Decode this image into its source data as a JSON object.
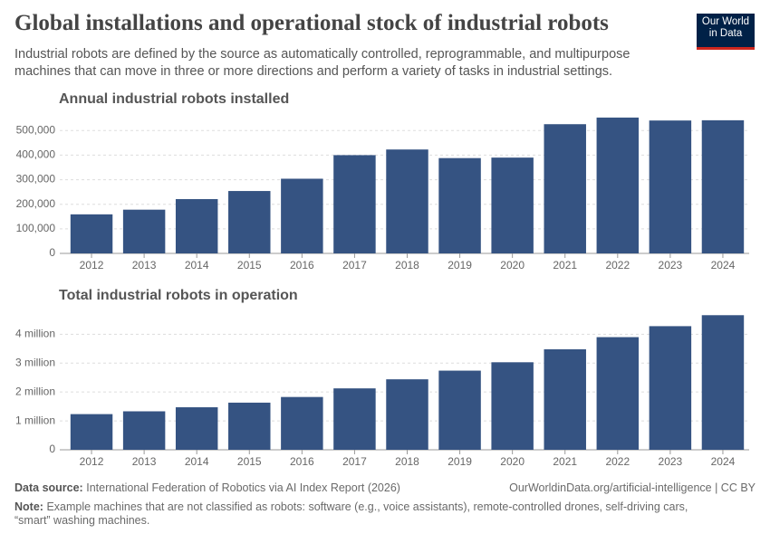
{
  "header": {
    "title": "Global installations and operational stock of industrial robots",
    "subtitle": "Industrial robots are defined by the source as automatically controlled, reprogrammable, and multipurpose machines that can move in three or more directions and perform a variety of tasks in industrial settings.",
    "logo": [
      "Our World",
      "in Data"
    ]
  },
  "chart_data": [
    {
      "type": "bar",
      "title": "Annual industrial robots installed",
      "categories": [
        "2012",
        "2013",
        "2014",
        "2015",
        "2016",
        "2017",
        "2018",
        "2019",
        "2020",
        "2021",
        "2022",
        "2023",
        "2024"
      ],
      "values": [
        159000,
        178000,
        221000,
        254000,
        304000,
        400000,
        423000,
        388000,
        390000,
        526000,
        553000,
        541000,
        542000
      ],
      "color": "#355382",
      "ylim": [
        0,
        560000
      ],
      "yticks": [
        0,
        {
          "value": 100000,
          "label": "100,000"
        },
        {
          "value": 200000,
          "label": "200,000"
        },
        {
          "value": 300000,
          "label": "300,000"
        },
        {
          "value": 400000,
          "label": "400,000"
        },
        {
          "value": 500000,
          "label": "500,000"
        }
      ],
      "grid": true
    },
    {
      "type": "bar",
      "title": "Total industrial robots in operation",
      "categories": [
        "2012",
        "2013",
        "2014",
        "2015",
        "2016",
        "2017",
        "2018",
        "2019",
        "2020",
        "2021",
        "2022",
        "2023",
        "2024"
      ],
      "values": [
        1235000,
        1332000,
        1472000,
        1632000,
        1828000,
        2126000,
        2440000,
        2740000,
        3030000,
        3480000,
        3900000,
        4280000,
        4660000
      ],
      "color": "#355382",
      "ylim": [
        0,
        4700000
      ],
      "yticks": [
        0,
        {
          "value": 1000000,
          "label": "1 million"
        },
        {
          "value": 2000000,
          "label": "2 million"
        },
        {
          "value": 3000000,
          "label": "3 million"
        },
        {
          "value": 4000000,
          "label": "4 million"
        }
      ],
      "grid": true
    }
  ],
  "footer": {
    "source_label": "Data source:",
    "source": "International Federation of Robotics via AI Index Report (2026)",
    "url": "OurWorldinData.org/artificial-intelligence | CC BY",
    "note_label": "Note:",
    "note": "Example machines that are not classified as robots: software (e.g., voice assistants), remote-controlled drones, self-driving cars, “smart” washing machines."
  }
}
